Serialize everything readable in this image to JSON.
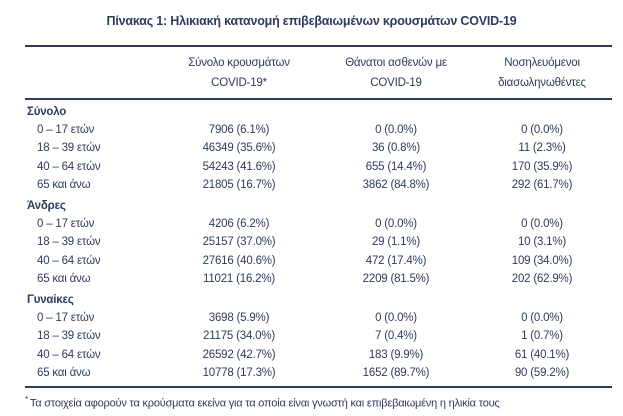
{
  "title": "Πίνακας 1: Ηλικιακή κατανομή επιβεβαιωμένων κρουσμάτων COVID-19",
  "colors": {
    "text": "#2d3c5c",
    "rule": "#2d3c5c",
    "background": "#ffffff"
  },
  "table": {
    "columns": [
      {
        "line1": "",
        "line2": ""
      },
      {
        "line1": "Σύνολο κρουσμάτων",
        "line2": "COVID-19*"
      },
      {
        "line1": "Θάνατοι ασθενών με",
        "line2": "COVID-19"
      },
      {
        "line1": "Νοσηλευόμενοι",
        "line2": "διασωληνωθέντες"
      }
    ],
    "sections": [
      {
        "label": "Σύνολο",
        "rows": [
          {
            "age": "0 – 17 ετών",
            "cases": "7906 (6.1%)",
            "deaths": "0 (0.0%)",
            "intubated": "0 (0.0%)"
          },
          {
            "age": "18 – 39 ετών",
            "cases": "46349 (35.6%)",
            "deaths": "36 (0.8%)",
            "intubated": "11 (2.3%)"
          },
          {
            "age": "40 – 64 ετών",
            "cases": "54243 (41.6%)",
            "deaths": "655 (14.4%)",
            "intubated": "170 (35.9%)"
          },
          {
            "age": "65 και άνω",
            "cases": "21805 (16.7%)",
            "deaths": "3862 (84.8%)",
            "intubated": "292 (61.7%)"
          }
        ]
      },
      {
        "label": "Άνδρες",
        "rows": [
          {
            "age": "0 – 17 ετών",
            "cases": "4206 (6.2%)",
            "deaths": "0 (0.0%)",
            "intubated": "0 (0.0%)"
          },
          {
            "age": "18 – 39 ετών",
            "cases": "25157 (37.0%)",
            "deaths": "29 (1.1%)",
            "intubated": "10 (3.1%)"
          },
          {
            "age": "40 – 64 ετών",
            "cases": "27616 (40.6%)",
            "deaths": "472 (17.4%)",
            "intubated": "109 (34.0%)"
          },
          {
            "age": "65 και άνω",
            "cases": "11021 (16.2%)",
            "deaths": "2209 (81.5%)",
            "intubated": "202 (62.9%)"
          }
        ]
      },
      {
        "label": "Γυναίκες",
        "rows": [
          {
            "age": "0 – 17 ετών",
            "cases": "3698 (5.9%)",
            "deaths": "0 (0.0%)",
            "intubated": "0 (0.0%)"
          },
          {
            "age": "18 – 39 ετών",
            "cases": "21175 (34.0%)",
            "deaths": "7 (0.4%)",
            "intubated": "1 (0.7%)"
          },
          {
            "age": "40 – 64 ετών",
            "cases": "26592 (42.7%)",
            "deaths": "183 (9.9%)",
            "intubated": "61 (40.1%)"
          },
          {
            "age": "65 και άνω",
            "cases": "10778 (17.3%)",
            "deaths": "1652 (89.7%)",
            "intubated": "90 (59.2%)"
          }
        ]
      }
    ]
  },
  "footnote": {
    "marker": "*",
    "text": "Τα στοιχεία αφορούν τα κρούσματα εκείνα για τα οποία είναι γνωστή και επιβεβαιωμένη η ηλικία τους"
  }
}
